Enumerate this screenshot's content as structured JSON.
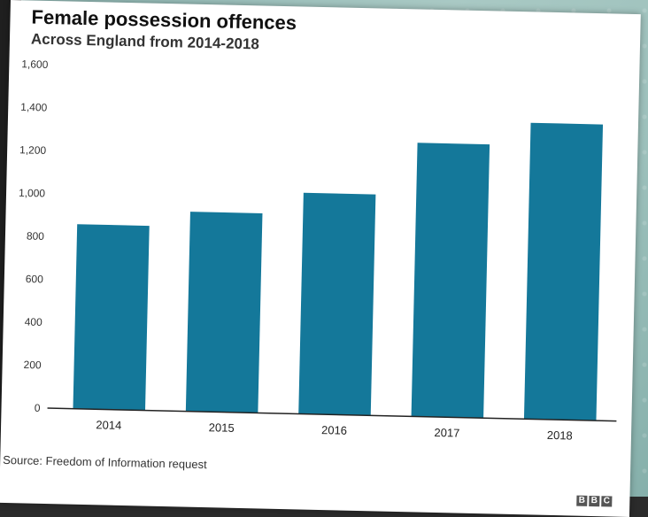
{
  "colors": {
    "bar": "#14789a",
    "axis": "#222222",
    "grid": "#d6d6d6"
  },
  "source": "Source: Freedom of Information request",
  "logo": [
    "B",
    "B",
    "C"
  ],
  "chart_data": {
    "type": "bar",
    "title": "Female possession offences",
    "subtitle": "Across England from 2014-2018",
    "xlabel": "",
    "ylabel": "",
    "categories": [
      "2014",
      "2015",
      "2016",
      "2017",
      "2018"
    ],
    "values": [
      860,
      930,
      1030,
      1275,
      1380
    ],
    "yticks": [
      "0",
      "200",
      "400",
      "600",
      "800",
      "1,000",
      "1,200",
      "1,400",
      "1,600"
    ],
    "ylim": [
      0,
      1600
    ],
    "grid": false,
    "legend": "none"
  }
}
